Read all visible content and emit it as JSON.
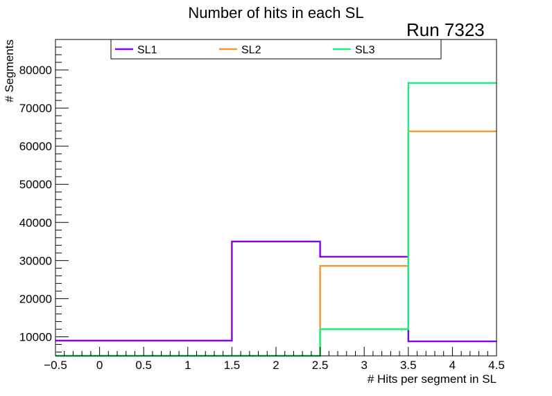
{
  "chart_data": {
    "type": "line",
    "title": "Number of hits in each SL",
    "run_label": "Run 7323",
    "xlabel": "# Hits per segment in SL",
    "ylabel": "# Segments",
    "xlim": [
      -0.5,
      4.5
    ],
    "ylim": [
      5000,
      88000
    ],
    "xticks": [
      -0.5,
      0,
      0.5,
      1,
      1.5,
      2,
      2.5,
      3,
      3.5,
      4,
      4.5
    ],
    "xtick_labels": [
      "−0.5",
      "0",
      "0.5",
      "1",
      "1.5",
      "2",
      "2.5",
      "3",
      "3.5",
      "4",
      "4.5"
    ],
    "yticks": [
      10000,
      20000,
      30000,
      40000,
      50000,
      60000,
      70000,
      80000
    ],
    "ytick_labels": [
      "10000",
      "20000",
      "30000",
      "40000",
      "50000",
      "60000",
      "70000",
      "80000"
    ],
    "grid": false,
    "legend_position": "top",
    "bin_edges": [
      -0.5,
      1.5,
      2.5,
      3.5,
      4.5
    ],
    "series": [
      {
        "name": "SL1",
        "color": "#8b00e8",
        "values": [
          9000,
          35000,
          31000,
          8800
        ]
      },
      {
        "name": "SL2",
        "color": "#f59630",
        "values": [
          5000,
          5000,
          28600,
          63900
        ]
      },
      {
        "name": "SL3",
        "color": "#19f07a",
        "values": [
          5000,
          5000,
          12000,
          76600
        ]
      }
    ]
  }
}
